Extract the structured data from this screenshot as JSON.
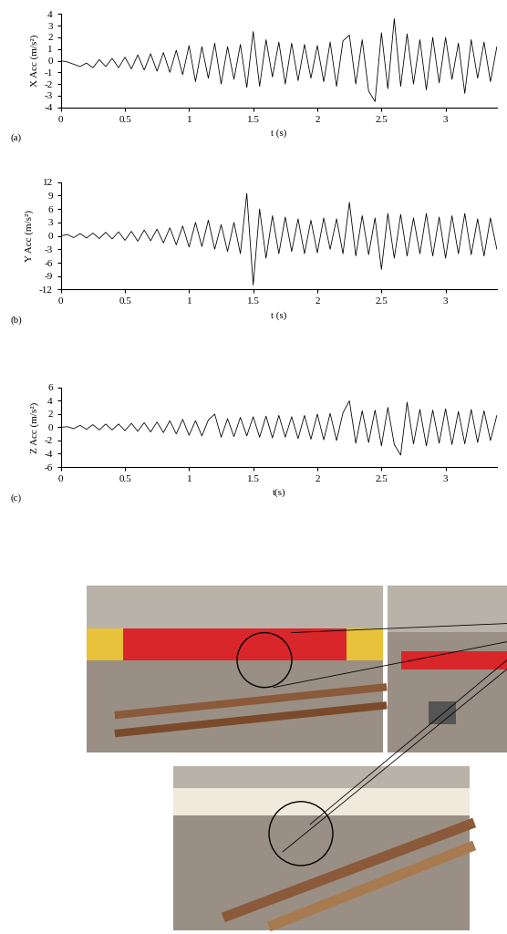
{
  "chart_data": [
    {
      "type": "line",
      "annotations": [
        "(a)"
      ],
      "x_label": "t (s)",
      "y_label": "X Acc (m/s²)",
      "x": [
        0,
        0.05,
        0.1,
        0.15,
        0.2,
        0.25,
        0.3,
        0.35,
        0.4,
        0.45,
        0.5,
        0.55,
        0.6,
        0.65,
        0.7,
        0.75,
        0.8,
        0.85,
        0.9,
        0.95,
        1.0,
        1.05,
        1.1,
        1.15,
        1.2,
        1.25,
        1.3,
        1.35,
        1.4,
        1.45,
        1.5,
        1.55,
        1.6,
        1.65,
        1.7,
        1.75,
        1.8,
        1.85,
        1.9,
        1.95,
        2.0,
        2.05,
        2.1,
        2.15,
        2.2,
        2.25,
        2.3,
        2.35,
        2.4,
        2.45,
        2.5,
        2.55,
        2.6,
        2.65,
        2.7,
        2.75,
        2.8,
        2.85,
        2.9,
        2.95,
        3.0,
        3.05,
        3.1,
        3.15,
        3.2,
        3.25,
        3.3,
        3.35,
        3.4
      ],
      "values": [
        0,
        -0.1,
        -0.3,
        -0.5,
        -0.2,
        -0.6,
        0.1,
        -0.5,
        0.2,
        -0.6,
        0.3,
        -0.7,
        0.5,
        -0.8,
        0.6,
        -0.9,
        0.7,
        -1.0,
        0.9,
        -1.2,
        1.3,
        -1.8,
        1.2,
        -1.5,
        1.5,
        -2.0,
        1.2,
        -1.6,
        1.4,
        -2.3,
        2.5,
        -2.2,
        1.8,
        -1.4,
        1.6,
        -2.0,
        1.5,
        -1.7,
        1.4,
        -1.5,
        1.3,
        -1.8,
        1.6,
        -2.2,
        1.7,
        2.2,
        -2.0,
        1.8,
        -2.6,
        -3.5,
        2.4,
        -2.4,
        3.6,
        -2.2,
        2.3,
        -2.0,
        1.8,
        -2.5,
        2.0,
        -1.9,
        2.0,
        -1.6,
        1.5,
        -2.8,
        1.8,
        -1.5,
        1.6,
        -1.8,
        1.2
      ],
      "color": "#000000",
      "xlim": [
        0,
        3.4
      ],
      "xticks": [
        0,
        0.5,
        1,
        1.5,
        2,
        2.5,
        3
      ],
      "ylim": [
        -4,
        4
      ],
      "yticks": [
        -4,
        -3,
        -2,
        -1,
        0,
        1,
        2,
        3,
        4
      ]
    },
    {
      "type": "line",
      "annotations": [
        "(b)"
      ],
      "x_label": "t (s)",
      "y_label": "Y Acc (m/s²)",
      "x": [
        0,
        0.05,
        0.1,
        0.15,
        0.2,
        0.25,
        0.3,
        0.35,
        0.4,
        0.45,
        0.5,
        0.55,
        0.6,
        0.65,
        0.7,
        0.75,
        0.8,
        0.85,
        0.9,
        0.95,
        1.0,
        1.05,
        1.1,
        1.15,
        1.2,
        1.25,
        1.3,
        1.35,
        1.4,
        1.45,
        1.5,
        1.55,
        1.6,
        1.65,
        1.7,
        1.75,
        1.8,
        1.85,
        1.9,
        1.95,
        2.0,
        2.05,
        2.1,
        2.15,
        2.2,
        2.25,
        2.3,
        2.35,
        2.4,
        2.45,
        2.5,
        2.55,
        2.6,
        2.65,
        2.7,
        2.75,
        2.8,
        2.85,
        2.9,
        2.95,
        3.0,
        3.05,
        3.1,
        3.15,
        3.2,
        3.25,
        3.3,
        3.35,
        3.4
      ],
      "values": [
        0,
        0.3,
        -0.4,
        0.5,
        -0.5,
        0.6,
        -0.6,
        0.8,
        -0.7,
        0.9,
        -1.0,
        1.0,
        -1.2,
        1.3,
        -1.1,
        1.5,
        -1.6,
        1.8,
        -2.0,
        2.2,
        -2.5,
        3.0,
        -2.4,
        3.5,
        -3.0,
        2.5,
        -3.5,
        3.0,
        -4.0,
        9.5,
        -11.0,
        6.0,
        -5.0,
        4.5,
        -4.0,
        4.2,
        -3.5,
        3.8,
        -4.0,
        3.5,
        -3.8,
        4.0,
        -3.0,
        3.8,
        -4.0,
        7.5,
        -4.5,
        4.5,
        -4.2,
        4.0,
        -7.5,
        5.0,
        -5.0,
        4.8,
        -4.5,
        4.0,
        -4.0,
        5.0,
        -4.5,
        4.2,
        -5.0,
        4.5,
        -4.0,
        5.0,
        -4.2,
        3.8,
        -4.5,
        4.0,
        -3.0
      ],
      "color": "#000000",
      "xlim": [
        0,
        3.4
      ],
      "xticks": [
        0,
        0.5,
        1,
        1.5,
        2,
        2.5,
        3
      ],
      "ylim": [
        -12,
        12
      ],
      "yticks": [
        -12,
        -9,
        -6,
        -3,
        0,
        3,
        6,
        9,
        12
      ]
    },
    {
      "type": "line",
      "annotations": [
        "(c)"
      ],
      "x_label": "t(s)",
      "y_label": "Z Acc (m/s²)",
      "x": [
        0,
        0.05,
        0.1,
        0.15,
        0.2,
        0.25,
        0.3,
        0.35,
        0.4,
        0.45,
        0.5,
        0.55,
        0.6,
        0.65,
        0.7,
        0.75,
        0.8,
        0.85,
        0.9,
        0.95,
        1.0,
        1.05,
        1.1,
        1.15,
        1.2,
        1.25,
        1.3,
        1.35,
        1.4,
        1.45,
        1.5,
        1.55,
        1.6,
        1.65,
        1.7,
        1.75,
        1.8,
        1.85,
        1.9,
        1.95,
        2.0,
        2.05,
        2.1,
        2.15,
        2.2,
        2.25,
        2.3,
        2.35,
        2.4,
        2.45,
        2.5,
        2.55,
        2.6,
        2.65,
        2.7,
        2.75,
        2.8,
        2.85,
        2.9,
        2.95,
        3.0,
        3.05,
        3.1,
        3.15,
        3.2,
        3.25,
        3.3,
        3.35,
        3.4
      ],
      "values": [
        0,
        0.1,
        -0.2,
        0.3,
        -0.3,
        0.4,
        -0.4,
        0.5,
        -0.4,
        0.5,
        -0.5,
        0.6,
        -0.6,
        0.7,
        -0.7,
        0.8,
        -0.8,
        1.0,
        -1.0,
        1.2,
        -1.2,
        1.0,
        -1.3,
        1.1,
        2.0,
        -1.5,
        1.3,
        -1.4,
        1.5,
        -1.3,
        1.6,
        -1.5,
        1.7,
        -1.6,
        1.8,
        -1.5,
        1.6,
        -1.7,
        1.8,
        -1.8,
        2.0,
        -1.9,
        2.1,
        -2.0,
        2.2,
        4.0,
        -2.4,
        2.5,
        -2.3,
        2.6,
        -2.8,
        3.0,
        -2.6,
        -4.2,
        3.8,
        -2.5,
        2.7,
        -2.8,
        2.6,
        -2.4,
        2.8,
        -2.6,
        2.4,
        -2.5,
        2.7,
        -2.3,
        2.5,
        -2.0,
        1.8
      ],
      "color": "#000000",
      "xlim": [
        0,
        3.4
      ],
      "xticks": [
        0,
        0.5,
        1,
        1.5,
        2,
        2.5,
        3
      ],
      "ylim": [
        -6,
        6
      ],
      "yticks": [
        -6,
        -4,
        -2,
        0,
        2,
        4,
        6
      ]
    }
  ]
}
